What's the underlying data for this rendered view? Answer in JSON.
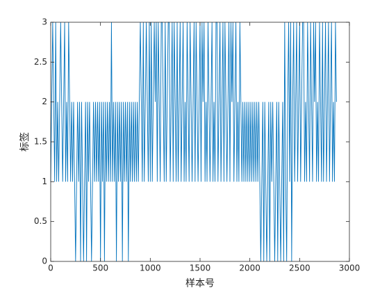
{
  "chart_data": {
    "type": "line",
    "xlabel": "样本号",
    "ylabel": "标签",
    "color": "#0072bd",
    "xlim": [
      0,
      3000
    ],
    "ylim": [
      0,
      3
    ],
    "xticks": [
      0,
      500,
      1000,
      1500,
      2000,
      2500,
      3000
    ],
    "yticks": [
      0,
      0.5,
      1,
      1.5,
      2,
      2.5,
      3
    ],
    "x": [
      0,
      10,
      20,
      30,
      40,
      50,
      60,
      70,
      80,
      90,
      100,
      110,
      120,
      130,
      140,
      150,
      160,
      170,
      180,
      190,
      200,
      210,
      220,
      230,
      240,
      250,
      260,
      270,
      280,
      290,
      300,
      310,
      320,
      330,
      340,
      350,
      360,
      370,
      380,
      390,
      400,
      410,
      420,
      430,
      440,
      450,
      460,
      470,
      480,
      490,
      500,
      510,
      520,
      530,
      540,
      550,
      560,
      570,
      580,
      590,
      600,
      610,
      620,
      630,
      640,
      650,
      660,
      670,
      680,
      690,
      700,
      710,
      720,
      730,
      740,
      750,
      760,
      770,
      780,
      790,
      800,
      810,
      820,
      830,
      840,
      850,
      860,
      870,
      880,
      890,
      900,
      910,
      920,
      930,
      940,
      950,
      960,
      970,
      980,
      990,
      1000,
      1010,
      1020,
      1030,
      1040,
      1050,
      1060,
      1070,
      1080,
      1090,
      1100,
      1110,
      1120,
      1130,
      1140,
      1150,
      1160,
      1170,
      1180,
      1190,
      1200,
      1210,
      1220,
      1230,
      1240,
      1250,
      1260,
      1270,
      1280,
      1290,
      1300,
      1310,
      1320,
      1330,
      1340,
      1350,
      1360,
      1370,
      1380,
      1390,
      1400,
      1410,
      1420,
      1430,
      1440,
      1450,
      1460,
      1470,
      1480,
      1490,
      1500,
      1510,
      1520,
      1530,
      1540,
      1550,
      1560,
      1570,
      1580,
      1590,
      1600,
      1610,
      1620,
      1630,
      1640,
      1650,
      1660,
      1670,
      1680,
      1690,
      1700,
      1710,
      1720,
      1730,
      1740,
      1750,
      1760,
      1770,
      1780,
      1790,
      1800,
      1810,
      1820,
      1830,
      1840,
      1850,
      1860,
      1870,
      1880,
      1890,
      1900,
      1910,
      1920,
      1930,
      1940,
      1950,
      1960,
      1970,
      1980,
      1990,
      2000,
      2010,
      2020,
      2030,
      2040,
      2050,
      2060,
      2070,
      2080,
      2090,
      2100,
      2110,
      2120,
      2130,
      2140,
      2150,
      2160,
      2170,
      2180,
      2190,
      2200,
      2210,
      2220,
      2230,
      2240,
      2250,
      2260,
      2270,
      2280,
      2290,
      2300,
      2310,
      2320,
      2330,
      2340,
      2350,
      2360,
      2370,
      2380,
      2390,
      2400,
      2410,
      2420,
      2430,
      2440,
      2450,
      2460,
      2470,
      2480,
      2490,
      2500,
      2510,
      2520,
      2530,
      2540,
      2550,
      2560,
      2570,
      2580,
      2590,
      2600,
      2610,
      2620,
      2630,
      2640,
      2650,
      2660,
      2670,
      2680,
      2690,
      2700,
      2710,
      2720,
      2730,
      2740,
      2750,
      2760,
      2770,
      2780,
      2790,
      2800,
      2810,
      2820,
      2830,
      2840,
      2850,
      2860,
      2870
    ],
    "values": [
      1,
      2,
      3,
      2,
      1,
      3,
      1,
      2,
      1,
      2,
      3,
      2,
      1,
      2,
      3,
      1,
      2,
      1,
      3,
      2,
      1,
      2,
      1,
      2,
      1,
      0,
      1,
      2,
      1,
      2,
      0,
      2,
      1,
      0,
      1,
      2,
      0,
      2,
      1,
      2,
      1,
      0,
      1,
      2,
      1,
      2,
      1,
      2,
      1,
      2,
      0,
      2,
      1,
      2,
      0,
      2,
      1,
      2,
      1,
      2,
      1,
      3,
      1,
      2,
      1,
      2,
      0,
      2,
      1,
      2,
      1,
      2,
      0,
      2,
      1,
      2,
      1,
      2,
      0,
      2,
      1,
      2,
      1,
      2,
      1,
      2,
      1,
      2,
      1,
      2,
      3,
      2,
      1,
      3,
      1,
      2,
      3,
      2,
      1,
      3,
      1,
      3,
      1,
      2,
      3,
      2,
      3,
      1,
      3,
      2,
      1,
      3,
      3,
      2,
      1,
      3,
      1,
      2,
      3,
      3,
      1,
      2,
      3,
      1,
      3,
      2,
      1,
      3,
      1,
      2,
      3,
      1,
      2,
      3,
      1,
      2,
      1,
      3,
      2,
      1,
      3,
      2,
      1,
      2,
      3,
      1,
      3,
      2,
      1,
      2,
      3,
      1,
      3,
      2,
      3,
      1,
      2,
      1,
      3,
      2,
      1,
      2,
      3,
      1,
      2,
      1,
      3,
      3,
      1,
      2,
      3,
      1,
      2,
      3,
      1,
      3,
      2,
      1,
      2,
      3,
      1,
      3,
      2,
      3,
      1,
      2,
      3,
      1,
      2,
      1,
      3,
      2,
      1,
      2,
      1,
      2,
      1,
      2,
      1,
      2,
      1,
      2,
      1,
      2,
      1,
      2,
      1,
      2,
      1,
      2,
      1,
      0,
      1,
      2,
      0,
      2,
      1,
      0,
      1,
      2,
      0,
      2,
      1,
      2,
      1,
      0,
      1,
      2,
      0,
      2,
      1,
      0,
      1,
      2,
      0,
      3,
      1,
      0,
      2,
      3,
      1,
      3,
      0,
      2,
      3,
      1,
      2,
      3,
      1,
      2,
      3,
      1,
      2,
      3,
      3,
      1,
      2,
      1,
      3,
      2,
      1,
      3,
      2,
      1,
      3,
      2,
      3,
      1,
      2,
      1,
      3,
      2,
      1,
      3,
      1,
      2,
      3,
      1,
      2,
      3,
      1,
      2,
      3,
      1,
      2,
      1,
      3,
      2
    ]
  }
}
